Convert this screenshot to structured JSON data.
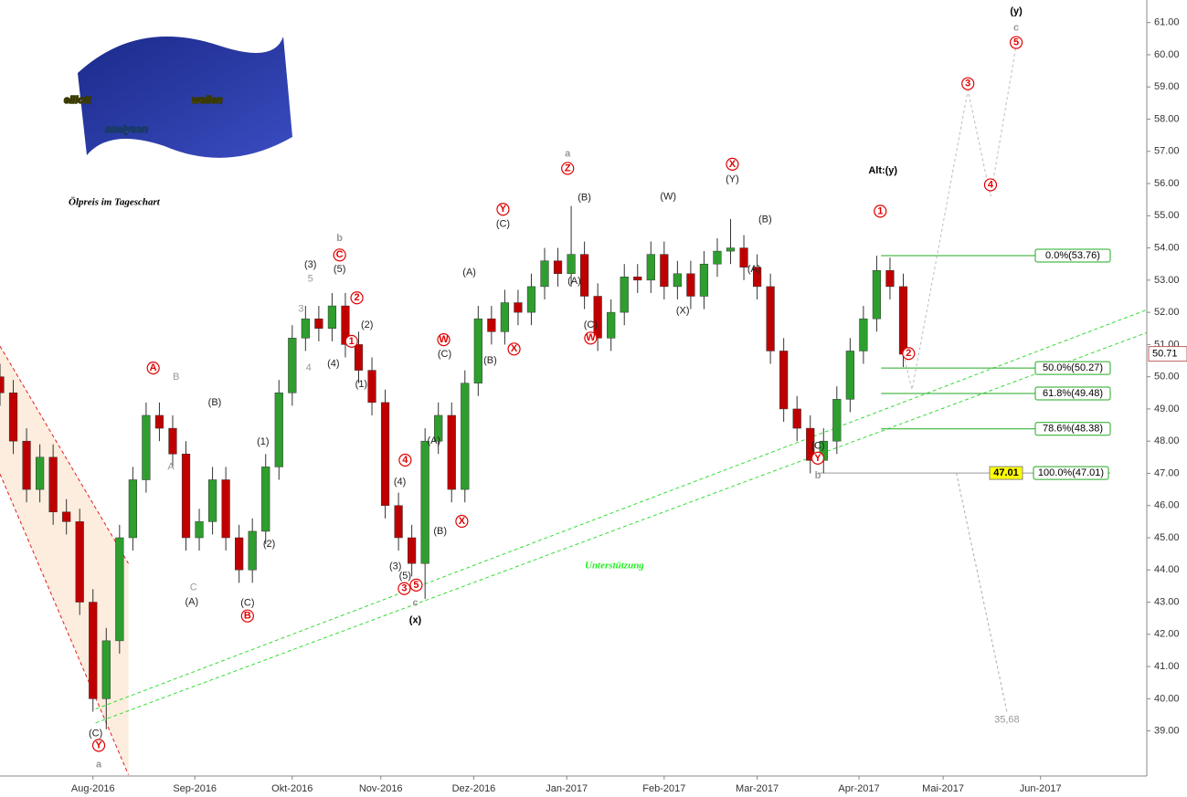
{
  "chart_data": {
    "type": "candlestick",
    "title": "Ölpreis im Tageschart",
    "logo": [
      "elliott",
      "wellen",
      "analysen"
    ],
    "support_label": "Unterstützung",
    "up_color": "#2e9e2e",
    "down_color": "#c00000",
    "x": [
      0,
      3,
      6,
      9,
      12,
      15,
      18,
      21,
      24,
      27,
      30,
      33,
      36,
      39,
      42,
      45,
      48,
      51,
      54,
      57,
      60,
      63,
      66,
      69,
      72,
      75,
      78,
      81,
      84,
      87,
      90,
      93,
      96,
      99,
      102,
      105,
      108,
      111,
      114,
      117,
      120,
      123,
      126,
      129,
      132,
      135,
      138,
      141,
      144,
      147,
      150,
      153,
      156,
      159,
      162,
      165,
      168,
      171,
      174,
      177,
      180,
      183,
      186,
      189,
      192,
      195,
      198,
      201,
      204
    ],
    "open": [
      50.0,
      49.5,
      48.0,
      46.5,
      47.5,
      45.8,
      45.5,
      43.0,
      40.0,
      41.8,
      45.0,
      46.8,
      48.8,
      48.4,
      47.6,
      45.0,
      45.5,
      46.8,
      45.0,
      44.0,
      45.2,
      47.2,
      49.5,
      51.2,
      51.8,
      51.5,
      52.2,
      51.0,
      50.2,
      49.2,
      46.0,
      45.0,
      44.2,
      48.0,
      48.8,
      46.5,
      49.8,
      51.8,
      51.4,
      52.3,
      52.0,
      52.8,
      53.6,
      53.2,
      53.8,
      52.5,
      51.2,
      52.0,
      53.1,
      53.0,
      53.8,
      52.8,
      53.2,
      52.5,
      53.5,
      53.9,
      54.0,
      53.4,
      52.8,
      50.8,
      49.0,
      48.4,
      47.4,
      48.0,
      49.3,
      50.8,
      51.8,
      53.3,
      52.8
    ],
    "high": [
      50.4,
      49.9,
      48.4,
      47.9,
      47.9,
      46.2,
      45.9,
      43.4,
      42.2,
      45.4,
      47.2,
      49.2,
      49.2,
      48.8,
      48.0,
      45.9,
      47.2,
      47.2,
      45.4,
      45.6,
      47.6,
      49.9,
      51.6,
      52.2,
      52.2,
      52.6,
      52.6,
      51.4,
      50.6,
      49.6,
      46.4,
      45.4,
      48.4,
      49.2,
      49.2,
      50.2,
      52.2,
      52.2,
      52.7,
      52.7,
      53.2,
      54.0,
      54.0,
      55.3,
      54.2,
      52.9,
      52.4,
      53.5,
      53.5,
      54.2,
      54.2,
      53.6,
      53.6,
      53.9,
      54.3,
      54.9,
      54.4,
      53.8,
      53.2,
      51.2,
      49.4,
      48.8,
      48.4,
      49.7,
      51.2,
      52.2,
      53.76,
      53.7,
      53.2
    ],
    "low": [
      49.1,
      47.6,
      46.1,
      46.1,
      45.4,
      45.1,
      42.6,
      39.6,
      39.05,
      41.4,
      44.6,
      46.4,
      48.0,
      47.2,
      44.6,
      44.6,
      45.1,
      44.6,
      43.6,
      43.6,
      44.8,
      46.8,
      49.1,
      50.8,
      51.1,
      51.1,
      50.6,
      49.8,
      48.8,
      45.6,
      44.6,
      43.8,
      43.1,
      47.6,
      46.1,
      46.1,
      49.4,
      51.0,
      51.0,
      51.6,
      51.6,
      52.4,
      52.8,
      52.8,
      52.1,
      50.8,
      50.8,
      51.6,
      52.6,
      52.6,
      52.4,
      52.4,
      52.1,
      52.1,
      53.1,
      53.5,
      53.0,
      52.4,
      50.4,
      48.6,
      48.0,
      47.0,
      47.01,
      47.6,
      48.9,
      50.4,
      51.4,
      52.4,
      50.3
    ],
    "close": [
      49.5,
      48.0,
      46.5,
      47.5,
      45.8,
      45.5,
      43.0,
      40.0,
      41.8,
      45.0,
      46.8,
      48.8,
      48.4,
      47.6,
      45.0,
      45.5,
      46.8,
      45.0,
      44.0,
      45.2,
      47.2,
      49.5,
      51.2,
      51.8,
      51.5,
      52.2,
      51.0,
      50.2,
      49.2,
      46.0,
      45.0,
      44.2,
      48.0,
      48.8,
      46.5,
      49.8,
      51.8,
      51.4,
      52.3,
      52.0,
      52.8,
      53.6,
      53.2,
      53.8,
      52.5,
      51.2,
      52.0,
      53.1,
      53.0,
      53.8,
      52.8,
      53.2,
      52.5,
      53.5,
      53.9,
      54.0,
      53.4,
      52.8,
      50.8,
      49.0,
      48.4,
      47.4,
      48.0,
      49.3,
      50.8,
      51.8,
      53.3,
      52.8,
      50.7
    ],
    "xlim": [
      0,
      259
    ],
    "xticks": [
      {
        "value": 21,
        "label": "Aug-2016"
      },
      {
        "value": 44,
        "label": "Sep-2016"
      },
      {
        "value": 66,
        "label": "Okt-2016"
      },
      {
        "value": 86,
        "label": "Nov-2016"
      },
      {
        "value": 107,
        "label": "Dez-2016"
      },
      {
        "value": 128,
        "label": "Jan-2017"
      },
      {
        "value": 150,
        "label": "Feb-2017"
      },
      {
        "value": 171,
        "label": "Mar-2017"
      },
      {
        "value": 194,
        "label": "Apr-2017"
      },
      {
        "value": 213,
        "label": "Mai-2017"
      },
      {
        "value": 235,
        "label": "Jun-2017"
      }
    ],
    "ylim": [
      37.6,
      61.7
    ],
    "yticks": [
      {
        "value": 39,
        "label": "39.00"
      },
      {
        "value": 40,
        "label": "40.00"
      },
      {
        "value": 41,
        "label": "41.00"
      },
      {
        "value": 42,
        "label": "42.00"
      },
      {
        "value": 43,
        "label": "43.00"
      },
      {
        "value": 44,
        "label": "44.00"
      },
      {
        "value": 45,
        "label": "45.00"
      },
      {
        "value": 46,
        "label": "46.00"
      },
      {
        "value": 47,
        "label": "47.00"
      },
      {
        "value": 48,
        "label": "48.00"
      },
      {
        "value": 49,
        "label": "49.00"
      },
      {
        "value": 50,
        "label": "50.00"
      },
      {
        "value": 51,
        "label": "51.00"
      },
      {
        "value": 52,
        "label": "52.00"
      },
      {
        "value": 53,
        "label": "53.00"
      },
      {
        "value": 54,
        "label": "54.00"
      },
      {
        "value": 55,
        "label": "55.00"
      },
      {
        "value": 56,
        "label": "56.00"
      },
      {
        "value": 57,
        "label": "57.00"
      },
      {
        "value": 58,
        "label": "58.00"
      },
      {
        "value": 59,
        "label": "59.00"
      },
      {
        "value": 60,
        "label": "60.00"
      },
      {
        "value": 61,
        "label": "61.00"
      }
    ],
    "last_price": {
      "value": 50.71,
      "label": "50.71"
    },
    "fib_levels": [
      {
        "value": 53.76,
        "label": "0.0%(53.76)"
      },
      {
        "value": 50.27,
        "label": "50.0%(50.27)"
      },
      {
        "value": 49.48,
        "label": "61.8%(49.48)"
      },
      {
        "value": 48.38,
        "label": "78.6%(48.38)"
      },
      {
        "value": 47.01,
        "label": "100.0%(47.01)"
      }
    ],
    "fib_marker": {
      "value": 47.01,
      "label": "47.01"
    },
    "projection": {
      "x": [
        204,
        206,
        218.6,
        223.7,
        229.5
      ],
      "y": [
        50.7,
        49.6,
        58.9,
        55.6,
        60.3
      ]
    },
    "alt_projection": {
      "x": [
        216,
        227.4
      ],
      "y": [
        47.01,
        39.6
      ]
    },
    "support_channel": {
      "x": [
        21.6,
        259
      ],
      "lower": [
        39.25,
        51.37
      ],
      "upper": [
        39.68,
        52.08
      ]
    },
    "down_channel": {
      "x": [
        0,
        29
      ],
      "upper": [
        50.95,
        44.2
      ],
      "lower": [
        46.98,
        37.64
      ]
    },
    "wave_labels": [
      {
        "x": 21.6,
        "y": 38.92,
        "text": "(C)",
        "style": "black"
      },
      {
        "x": 22.3,
        "y": 38.55,
        "text": "Y",
        "style": "circle"
      },
      {
        "x": 22.3,
        "y": 37.95,
        "text": "a",
        "style": "big"
      },
      {
        "x": 34.6,
        "y": 50.27,
        "text": "A",
        "style": "circle"
      },
      {
        "x": 39.8,
        "y": 49.99,
        "text": "B",
        "style": "gray"
      },
      {
        "x": 38.6,
        "y": 47.2,
        "text": "A",
        "style": "gray"
      },
      {
        "x": 48.5,
        "y": 49.2,
        "text": "(B)",
        "style": "black"
      },
      {
        "x": 43.7,
        "y": 43.45,
        "text": "C",
        "style": "gray"
      },
      {
        "x": 43.3,
        "y": 43.0,
        "text": "(A)",
        "style": "black"
      },
      {
        "x": 55.9,
        "y": 42.97,
        "text": "(C)",
        "style": "black"
      },
      {
        "x": 55.9,
        "y": 42.57,
        "text": "B",
        "style": "circle"
      },
      {
        "x": 59.4,
        "y": 47.98,
        "text": "(1)",
        "style": "black"
      },
      {
        "x": 60.8,
        "y": 44.8,
        "text": "(2)",
        "style": "black"
      },
      {
        "x": 70.1,
        "y": 53.47,
        "text": "(3)",
        "style": "black"
      },
      {
        "x": 70.1,
        "y": 53.04,
        "text": "5",
        "style": "gray"
      },
      {
        "x": 68,
        "y": 52.1,
        "text": "3",
        "style": "gray"
      },
      {
        "x": 69.7,
        "y": 50.27,
        "text": "4",
        "style": "gray"
      },
      {
        "x": 75.3,
        "y": 50.4,
        "text": "(4)",
        "style": "black"
      },
      {
        "x": 76.7,
        "y": 54.3,
        "text": "b",
        "style": "big"
      },
      {
        "x": 76.7,
        "y": 53.78,
        "text": "C",
        "style": "circle"
      },
      {
        "x": 76.7,
        "y": 53.33,
        "text": "(5)",
        "style": "black"
      },
      {
        "x": 80.6,
        "y": 52.45,
        "text": "2",
        "style": "circle"
      },
      {
        "x": 79.4,
        "y": 51.1,
        "text": "1",
        "style": "circle"
      },
      {
        "x": 82.9,
        "y": 51.6,
        "text": "(2)",
        "style": "black"
      },
      {
        "x": 81.6,
        "y": 49.76,
        "text": "(1)",
        "style": "black"
      },
      {
        "x": 91.5,
        "y": 47.41,
        "text": "4",
        "style": "circle"
      },
      {
        "x": 90.3,
        "y": 46.73,
        "text": "(4)",
        "style": "black"
      },
      {
        "x": 89.3,
        "y": 44.1,
        "text": "(3)",
        "style": "black"
      },
      {
        "x": 91.5,
        "y": 43.8,
        "text": "(5)",
        "style": "black"
      },
      {
        "x": 91.3,
        "y": 43.42,
        "text": "3",
        "style": "circle"
      },
      {
        "x": 94,
        "y": 43.53,
        "text": "5",
        "style": "circle"
      },
      {
        "x": 93.8,
        "y": 42.97,
        "text": "c",
        "style": "big"
      },
      {
        "x": 93.8,
        "y": 42.43,
        "text": "(x)",
        "style": "bold"
      },
      {
        "x": 100.2,
        "y": 51.15,
        "text": "W",
        "style": "circle"
      },
      {
        "x": 100.4,
        "y": 50.7,
        "text": "(C)",
        "style": "black"
      },
      {
        "x": 98,
        "y": 48.0,
        "text": "(A)",
        "style": "black"
      },
      {
        "x": 99.4,
        "y": 45.2,
        "text": "(B)",
        "style": "black"
      },
      {
        "x": 104.3,
        "y": 45.51,
        "text": "X",
        "style": "circle"
      },
      {
        "x": 106,
        "y": 53.24,
        "text": "(A)",
        "style": "black"
      },
      {
        "x": 113.6,
        "y": 55.2,
        "text": "Y",
        "style": "circle"
      },
      {
        "x": 113.6,
        "y": 54.74,
        "text": "(C)",
        "style": "black"
      },
      {
        "x": 110.7,
        "y": 50.5,
        "text": "(B)",
        "style": "black"
      },
      {
        "x": 116.1,
        "y": 50.86,
        "text": "X",
        "style": "circle"
      },
      {
        "x": 128.2,
        "y": 56.92,
        "text": "a",
        "style": "big"
      },
      {
        "x": 128.2,
        "y": 56.47,
        "text": "Z",
        "style": "circle"
      },
      {
        "x": 132,
        "y": 55.56,
        "text": "(B)",
        "style": "black"
      },
      {
        "x": 129.7,
        "y": 52.96,
        "text": "(A)",
        "style": "black"
      },
      {
        "x": 133.4,
        "y": 51.6,
        "text": "(C)",
        "style": "black"
      },
      {
        "x": 133.4,
        "y": 51.2,
        "text": "W",
        "style": "circle"
      },
      {
        "x": 150.9,
        "y": 55.59,
        "text": "(W)",
        "style": "black"
      },
      {
        "x": 154.2,
        "y": 52.05,
        "text": "(X)",
        "style": "black"
      },
      {
        "x": 165.4,
        "y": 56.6,
        "text": "X",
        "style": "circle"
      },
      {
        "x": 165.4,
        "y": 56.13,
        "text": "(Y)",
        "style": "black"
      },
      {
        "x": 172.8,
        "y": 54.88,
        "text": "(B)",
        "style": "black"
      },
      {
        "x": 170.3,
        "y": 53.33,
        "text": "(A)",
        "style": "black"
      },
      {
        "x": 184.7,
        "y": 47.84,
        "text": "(C)",
        "style": "black"
      },
      {
        "x": 184.7,
        "y": 47.47,
        "text": "Y",
        "style": "circle"
      },
      {
        "x": 184.7,
        "y": 46.93,
        "text": "b",
        "style": "big"
      },
      {
        "x": 198.8,
        "y": 55.14,
        "text": "1",
        "style": "circle"
      },
      {
        "x": 199.4,
        "y": 56.4,
        "text": "Alt:(y)",
        "style": "bold"
      },
      {
        "x": 205.2,
        "y": 50.72,
        "text": "2",
        "style": "circle"
      },
      {
        "x": 218.6,
        "y": 59.1,
        "text": "3",
        "style": "circle"
      },
      {
        "x": 223.7,
        "y": 55.96,
        "text": "4",
        "style": "circle"
      },
      {
        "x": 229.5,
        "y": 60.38,
        "text": "5",
        "style": "circle"
      },
      {
        "x": 229.5,
        "y": 60.83,
        "text": "c",
        "style": "big"
      },
      {
        "x": 229.5,
        "y": 61.34,
        "text": "(y)",
        "style": "bold"
      },
      {
        "x": 227.4,
        "y": 39.34,
        "text": "35,68",
        "style": "gray"
      }
    ]
  }
}
